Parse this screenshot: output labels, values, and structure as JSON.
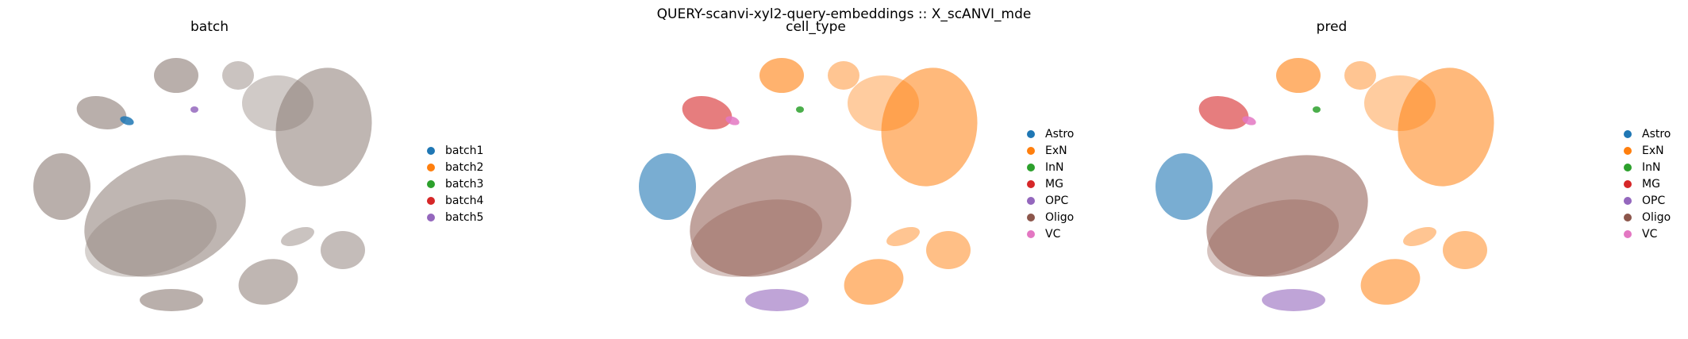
{
  "figure": {
    "suptitle": "QUERY-scanvi-xyl2-query-embeddings :: X_scANVI_mde"
  },
  "chart_data": [
    {
      "type": "scatter",
      "title": "batch",
      "legend_position": "right",
      "categories": [
        "batch1",
        "batch2",
        "batch3",
        "batch4",
        "batch5"
      ],
      "colors": [
        "#1f77b4",
        "#ff7f0e",
        "#2ca02c",
        "#d62728",
        "#9467bd"
      ],
      "grid": false,
      "axes_visible": false
    },
    {
      "type": "scatter",
      "title": "cell_type",
      "legend_position": "right",
      "categories": [
        "Astro",
        "ExN",
        "InN",
        "MG",
        "OPC",
        "Oligo",
        "VC"
      ],
      "colors": [
        "#1f77b4",
        "#ff7f0e",
        "#2ca02c",
        "#d62728",
        "#9467bd",
        "#8c564b",
        "#e377c2"
      ],
      "grid": false,
      "axes_visible": false
    },
    {
      "type": "scatter",
      "title": "pred",
      "legend_position": "right",
      "categories": [
        "Astro",
        "ExN",
        "InN",
        "MG",
        "OPC",
        "Oligo",
        "VC"
      ],
      "colors": [
        "#1f77b4",
        "#ff7f0e",
        "#2ca02c",
        "#d62728",
        "#9467bd",
        "#8c564b",
        "#e377c2"
      ],
      "grid": false,
      "axes_visible": false
    }
  ]
}
